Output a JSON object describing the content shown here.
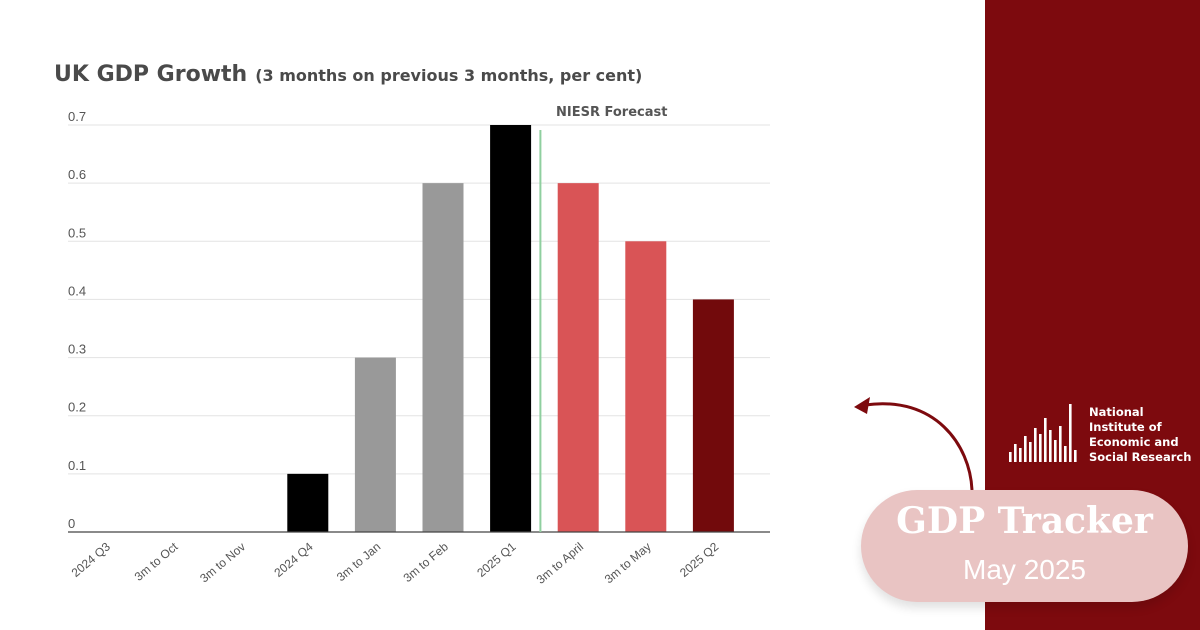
{
  "chart_data": {
    "type": "bar",
    "title": "UK GDP Growth",
    "subtitle": "(3 months on previous 3 months, per cent)",
    "categories": [
      "2024 Q3",
      "3m to Oct",
      "3m to Nov",
      "2024 Q4",
      "3m to Jan",
      "3m to Feb",
      "2025 Q1",
      "3m to April",
      "3m to May",
      "2025 Q2"
    ],
    "values": [
      0,
      0,
      0,
      0.1,
      0.3,
      0.6,
      0.7,
      0.6,
      0.5,
      0.4
    ],
    "bar_colors": [
      "#000000",
      "#000000",
      "#000000",
      "#000000",
      "#999999",
      "#999999",
      "#000000",
      "#d95456",
      "#d95456",
      "#720a0c"
    ],
    "yticks": [
      "0",
      "0.1",
      "0.2",
      "0.3",
      "0.4",
      "0.5",
      "0.6",
      "0.7"
    ],
    "ylim": [
      0,
      0.7
    ],
    "grid": true,
    "annotation": "NIESR Forecast",
    "forecast_line_color": "#8fcf9f",
    "xlabel": "",
    "ylabel": ""
  },
  "badge": {
    "title": "GDP Tracker",
    "subtitle": "May 2025"
  },
  "logo": {
    "lines": [
      "National",
      "Institute of",
      "Economic and",
      "Social Research"
    ]
  },
  "colors": {
    "panel": "#7d0a0e",
    "badge": "#e9c4c3"
  }
}
